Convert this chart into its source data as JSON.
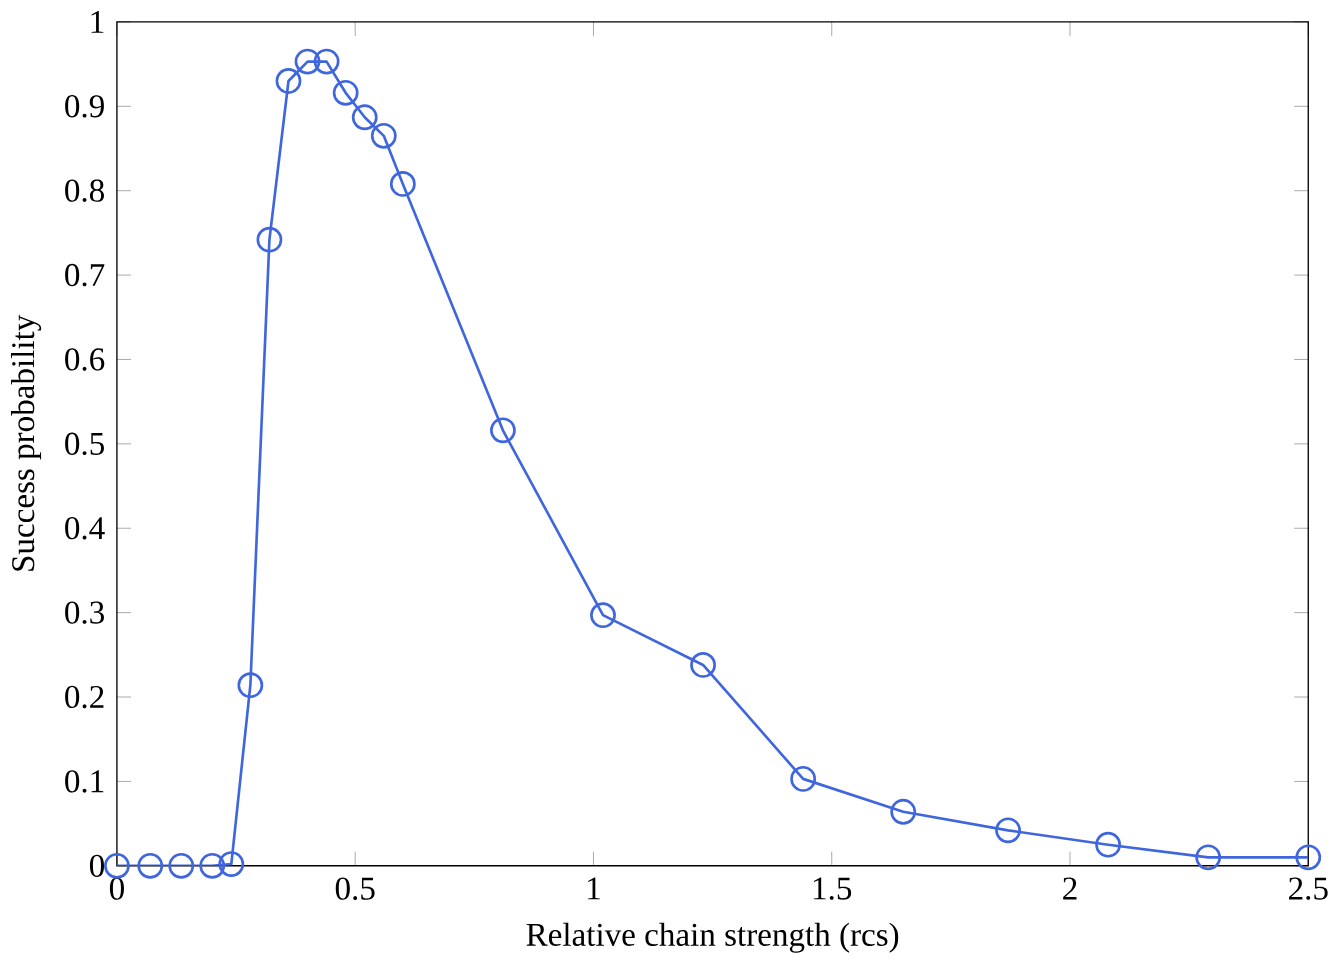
{
  "chart_data": {
    "type": "line",
    "xlabel": "Relative chain strength (rcs)",
    "ylabel": "Success probability",
    "marker": "circle",
    "line_style": "solid",
    "grid": false,
    "xlim": [
      0,
      2.5
    ],
    "ylim": [
      0,
      1
    ],
    "xticks": [
      0,
      0.5,
      1,
      1.5,
      2,
      2.5
    ],
    "yticks": [
      0,
      0.1,
      0.2,
      0.3,
      0.4,
      0.5,
      0.6,
      0.7,
      0.8,
      0.9,
      1
    ],
    "x": [
      0,
      0.07,
      0.135,
      0.2,
      0.24,
      0.28,
      0.32,
      0.36,
      0.4,
      0.44,
      0.48,
      0.52,
      0.56,
      0.6,
      0.81,
      1.02,
      1.23,
      1.44,
      1.65,
      1.87,
      2.08,
      2.29,
      2.5
    ],
    "series": [
      {
        "color": "#3f66dd",
        "values": [
          0,
          0,
          0,
          0,
          0.002,
          0.214,
          0.742,
          0.93,
          0.953,
          0.953,
          0.916,
          0.887,
          0.865,
          0.808,
          0.516,
          0.297,
          0.238,
          0.103,
          0.064,
          0.042,
          0.025,
          0.01,
          0.01
        ]
      }
    ]
  }
}
